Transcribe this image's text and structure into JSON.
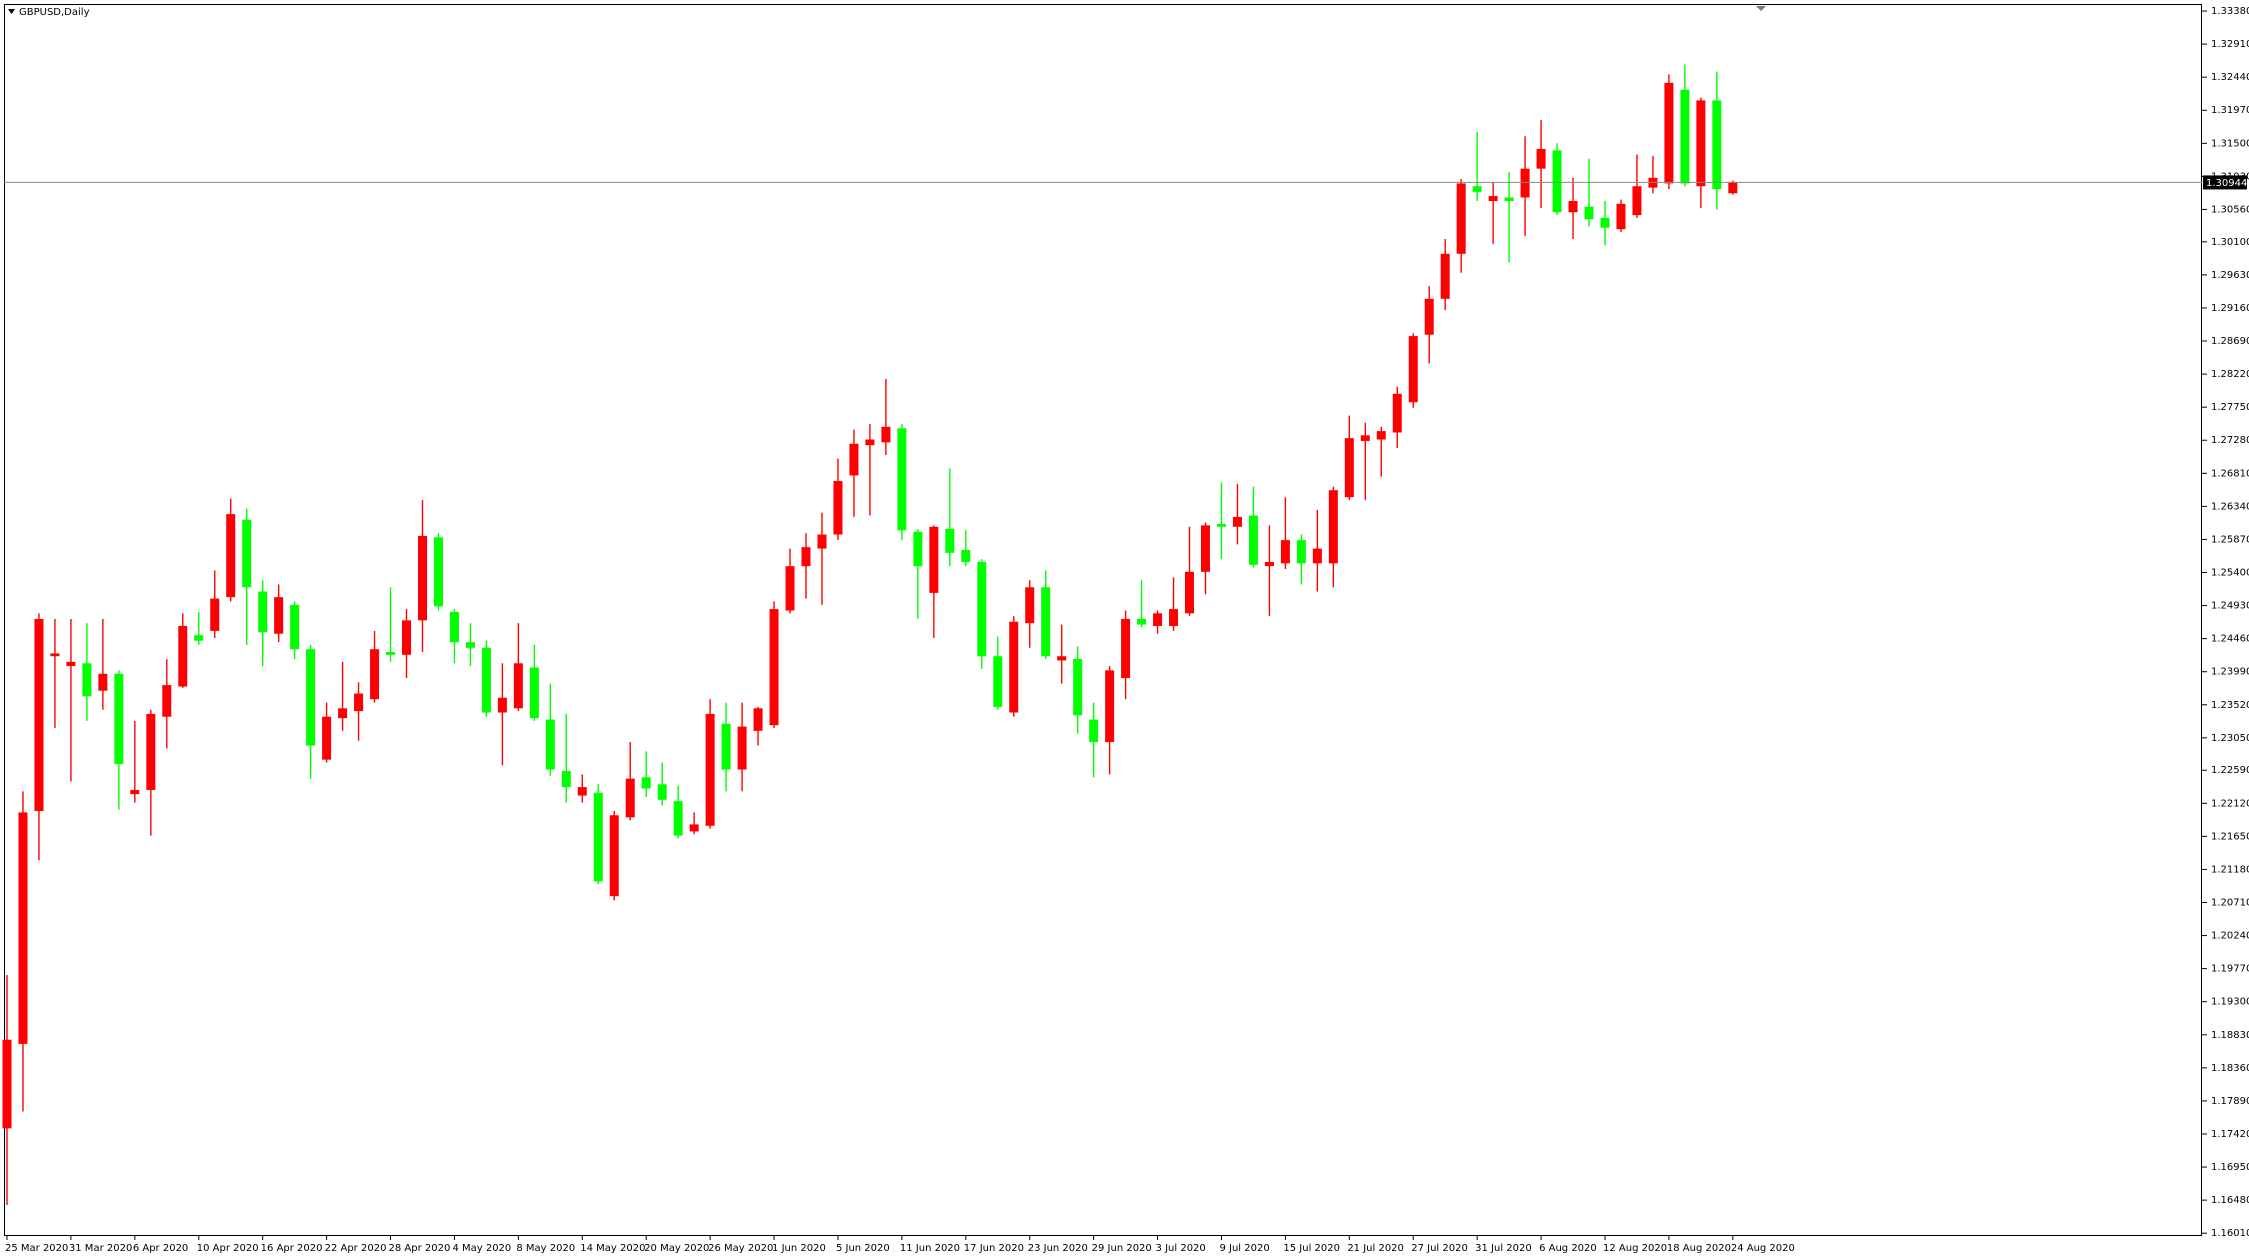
{
  "chart_data": {
    "type": "candlestick",
    "title": "GBPUSD,Daily",
    "up_color": "#ff0000",
    "down_color": "#00ff00",
    "current_price": 1.30944,
    "ylim": [
      1.1597,
      1.3348
    ],
    "yticks": [
      {
        "value": 1.3338,
        "label": "1.33380"
      },
      {
        "value": 1.3291,
        "label": "1.32910"
      },
      {
        "value": 1.3244,
        "label": "1.32440"
      },
      {
        "value": 1.3197,
        "label": "1.31970"
      },
      {
        "value": 1.315,
        "label": "1.31500"
      },
      {
        "value": 1.3103,
        "label": "1.31030"
      },
      {
        "value": 1.3056,
        "label": "1.30560"
      },
      {
        "value": 1.301,
        "label": "1.30100"
      },
      {
        "value": 1.2963,
        "label": "1.29630"
      },
      {
        "value": 1.2916,
        "label": "1.29160"
      },
      {
        "value": 1.2869,
        "label": "1.28690"
      },
      {
        "value": 1.2822,
        "label": "1.28220"
      },
      {
        "value": 1.2775,
        "label": "1.27750"
      },
      {
        "value": 1.2728,
        "label": "1.27280"
      },
      {
        "value": 1.2681,
        "label": "1.26810"
      },
      {
        "value": 1.2634,
        "label": "1.26340"
      },
      {
        "value": 1.2587,
        "label": "1.25870"
      },
      {
        "value": 1.254,
        "label": "1.25400"
      },
      {
        "value": 1.2493,
        "label": "1.24930"
      },
      {
        "value": 1.2446,
        "label": "1.24460"
      },
      {
        "value": 1.2399,
        "label": "1.23990"
      },
      {
        "value": 1.2352,
        "label": "1.23520"
      },
      {
        "value": 1.2305,
        "label": "1.23050"
      },
      {
        "value": 1.2259,
        "label": "1.22590"
      },
      {
        "value": 1.2212,
        "label": "1.22120"
      },
      {
        "value": 1.2165,
        "label": "1.21650"
      },
      {
        "value": 1.2118,
        "label": "1.21180"
      },
      {
        "value": 1.2071,
        "label": "1.20710"
      },
      {
        "value": 1.2024,
        "label": "1.20240"
      },
      {
        "value": 1.1977,
        "label": "1.19770"
      },
      {
        "value": 1.193,
        "label": "1.19300"
      },
      {
        "value": 1.1883,
        "label": "1.18830"
      },
      {
        "value": 1.1836,
        "label": "1.18360"
      },
      {
        "value": 1.1789,
        "label": "1.17890"
      },
      {
        "value": 1.1742,
        "label": "1.17420"
      },
      {
        "value": 1.1695,
        "label": "1.16950"
      },
      {
        "value": 1.1648,
        "label": "1.16480"
      },
      {
        "value": 1.1601,
        "label": "1.16010"
      }
    ],
    "categories": [
      "25 Mar 2020",
      null,
      null,
      null,
      "31 Mar 2020",
      null,
      null,
      null,
      "6 Apr 2020",
      null,
      null,
      null,
      "10 Apr 2020",
      null,
      null,
      null,
      "16 Apr 2020",
      null,
      null,
      null,
      "22 Apr 2020",
      null,
      null,
      null,
      "28 Apr 2020",
      null,
      null,
      null,
      "4 May 2020",
      null,
      null,
      null,
      "8 May 2020",
      null,
      null,
      null,
      "14 May 2020",
      null,
      null,
      null,
      "20 May 2020",
      null,
      null,
      null,
      "26 May 2020",
      null,
      null,
      null,
      "1 Jun 2020",
      null,
      null,
      null,
      "5 Jun 2020",
      null,
      null,
      null,
      "11 Jun 2020",
      null,
      null,
      null,
      "17 Jun 2020",
      null,
      null,
      null,
      "23 Jun 2020",
      null,
      null,
      null,
      "29 Jun 2020",
      null,
      null,
      null,
      "3 Jul 2020",
      null,
      null,
      null,
      "9 Jul 2020",
      null,
      null,
      null,
      "15 Jul 2020",
      null,
      null,
      null,
      "21 Jul 2020",
      null,
      null,
      null,
      "27 Jul 2020",
      null,
      null,
      null,
      "31 Jul 2020",
      null,
      null,
      null,
      "6 Aug 2020",
      null,
      null,
      null,
      "12 Aug 2020",
      null,
      null,
      null,
      "18 Aug 2020",
      null,
      null,
      null,
      "24 Aug 2020"
    ],
    "open": [
      1.175,
      1.187,
      1.2201,
      1.2421,
      1.2407,
      1.2411,
      1.2372,
      1.2396,
      1.2225,
      1.2231,
      1.2335,
      1.2378,
      1.2451,
      1.2457,
      1.2505,
      1.2615,
      1.2513,
      1.2453,
      1.2494,
      1.2431,
      1.2274,
      1.2333,
      1.2343,
      1.236,
      1.2427,
      1.2423,
      1.2472,
      1.259,
      1.2484,
      1.2441,
      1.2433,
      1.2341,
      1.2347,
      1.2405,
      1.2331,
      1.2258,
      1.2223,
      1.2227,
      1.208,
      1.2192,
      1.2249,
      1.2239,
      1.2215,
      1.2172,
      1.218,
      1.2325,
      1.226,
      1.2315,
      1.2323,
      1.2486,
      1.2549,
      1.2574,
      1.2594,
      1.2678,
      1.2721,
      1.2725,
      1.2745,
      1.2598,
      1.2511,
      1.2602,
      1.2572,
      1.2555,
      1.2421,
      1.2341,
      1.2468,
      1.2519,
      1.2415,
      1.2417,
      1.2331,
      1.2299,
      1.239,
      1.2474,
      1.2464,
      1.2464,
      1.2482,
      1.2541,
      1.2609,
      1.2605,
      1.2621,
      1.2549,
      1.2553,
      1.2586,
      1.2553,
      1.2553,
      1.2647,
      1.2727,
      1.2729,
      1.2739,
      1.2782,
      1.2878,
      1.2929,
      1.2993,
      1.3089,
      1.3068,
      1.3073,
      1.3073,
      1.3114,
      1.314,
      1.3052,
      1.306,
      1.3044,
      1.3028,
      1.3048,
      1.3087,
      1.3093,
      1.3226,
      1.3089,
      1.3211,
      1.3079
    ],
    "high": [
      1.1968,
      1.2229,
      1.2482,
      1.2474,
      1.2474,
      1.2468,
      1.2474,
      1.2401,
      1.2329,
      1.2345,
      1.2417,
      1.2482,
      1.2484,
      1.2543,
      1.2645,
      1.2631,
      1.2529,
      1.2523,
      1.2499,
      1.2437,
      1.2355,
      1.2413,
      1.2384,
      1.2457,
      1.2519,
      1.2488,
      1.2643,
      1.2596,
      1.2488,
      1.2468,
      1.2443,
      1.2411,
      1.2468,
      1.2437,
      1.2382,
      1.2339,
      1.2253,
      1.2239,
      1.2201,
      1.2299,
      1.2286,
      1.227,
      1.2237,
      1.2199,
      1.236,
      1.2355,
      1.2355,
      1.2349,
      1.2499,
      1.2574,
      1.2596,
      1.2625,
      1.2702,
      1.2743,
      1.2751,
      1.2815,
      1.2751,
      1.2602,
      1.2607,
      1.2688,
      1.26,
      1.2559,
      1.2449,
      1.2478,
      1.2529,
      1.2543,
      1.2466,
      1.2435,
      1.2355,
      1.2407,
      1.2486,
      1.2529,
      1.2486,
      1.2533,
      1.2605,
      1.2611,
      1.2668,
      1.2666,
      1.2662,
      1.2607,
      1.2647,
      1.2594,
      1.2629,
      1.2662,
      1.2763,
      1.2753,
      1.2747,
      1.2804,
      1.288,
      1.2947,
      1.3014,
      1.3099,
      1.3166,
      1.3095,
      1.3109,
      1.316,
      1.3183,
      1.315,
      1.3101,
      1.3128,
      1.3068,
      1.307,
      1.3134,
      1.3132,
      1.3248,
      1.3262,
      1.3215,
      1.3252,
      1.3097
    ],
    "low": [
      1.1641,
      1.1774,
      1.2131,
      1.2319,
      1.2243,
      1.2329,
      1.2345,
      1.2203,
      1.2213,
      1.2166,
      1.229,
      1.2376,
      1.2437,
      1.2447,
      1.2499,
      1.2437,
      1.2407,
      1.2441,
      1.2417,
      1.2247,
      1.227,
      1.2315,
      1.2301,
      1.2355,
      1.2413,
      1.239,
      1.2427,
      1.2486,
      1.2411,
      1.2407,
      1.2335,
      1.2266,
      1.2343,
      1.2329,
      1.2251,
      1.2213,
      1.2213,
      1.2097,
      1.2074,
      1.2188,
      1.2221,
      1.2209,
      1.2162,
      1.2168,
      1.2176,
      1.2229,
      1.2229,
      1.2294,
      1.2319,
      1.2482,
      1.2503,
      1.2494,
      1.2586,
      1.2619,
      1.2621,
      1.2707,
      1.2586,
      1.2474,
      1.2447,
      1.2549,
      1.2549,
      1.2403,
      1.2345,
      1.2335,
      1.2433,
      1.2417,
      1.2382,
      1.2311,
      1.2249,
      1.2253,
      1.236,
      1.2462,
      1.2453,
      1.2457,
      1.2478,
      1.2509,
      1.2559,
      1.258,
      1.2547,
      1.2478,
      1.2545,
      1.2523,
      1.2513,
      1.2519,
      1.2643,
      1.2643,
      1.2676,
      1.2717,
      1.2774,
      1.2837,
      1.2913,
      1.2966,
      1.3068,
      1.3007,
      1.2981,
      1.3018,
      1.3058,
      1.3048,
      1.3014,
      1.3032,
      1.3005,
      1.3024,
      1.3044,
      1.3079,
      1.3085,
      1.3089,
      1.3058,
      1.3056,
      1.3077
    ],
    "close": [
      1.1876,
      1.2199,
      1.2474,
      1.2425,
      1.2413,
      1.2364,
      1.2396,
      1.2268,
      1.2231,
      1.2339,
      1.238,
      1.2464,
      1.2443,
      1.2503,
      1.2623,
      1.2519,
      1.2455,
      1.2505,
      1.2431,
      1.2294,
      1.2335,
      1.2347,
      1.2368,
      1.2431,
      1.2423,
      1.2472,
      1.2592,
      1.2492,
      1.2441,
      1.2433,
      1.2341,
      1.2362,
      1.2411,
      1.2333,
      1.226,
      1.2235,
      1.2235,
      1.2101,
      1.2195,
      1.2247,
      1.2233,
      1.2217,
      1.2166,
      1.2182,
      1.2339,
      1.226,
      1.2321,
      1.2347,
      1.2488,
      1.2549,
      1.2576,
      1.2594,
      1.267,
      1.2723,
      1.2729,
      1.2747,
      1.26,
      1.2549,
      1.2605,
      1.2568,
      1.2555,
      1.2421,
      1.2349,
      1.247,
      1.2519,
      1.2421,
      1.2421,
      1.2337,
      1.2299,
      1.2401,
      1.2474,
      1.2466,
      1.2482,
      1.2488,
      1.2541,
      1.2607,
      1.2605,
      1.2619,
      1.2551,
      1.2555,
      1.2586,
      1.2553,
      1.2574,
      1.2657,
      1.2731,
      1.2735,
      1.2741,
      1.2794,
      1.2876,
      1.2929,
      1.2993,
      1.3093,
      1.3081,
      1.3075,
      1.3068,
      1.3114,
      1.3142,
      1.3052,
      1.3068,
      1.3042,
      1.303,
      1.3064,
      1.3089,
      1.3101,
      1.3236,
      1.3093,
      1.3211,
      1.3085,
      1.30944
    ]
  }
}
